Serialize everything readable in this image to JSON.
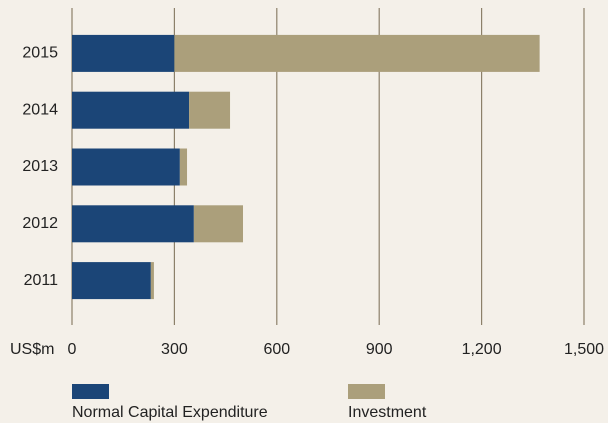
{
  "chart_data": {
    "type": "stacked_barh",
    "categories": [
      "2015",
      "2014",
      "2013",
      "2012",
      "2011"
    ],
    "series": [
      {
        "name": "Normal Capital Expenditure",
        "color": "#1b4577",
        "values": [
          300,
          343,
          316,
          357,
          231
        ]
      },
      {
        "name": "Investment",
        "color": "#ab9f7b",
        "values": [
          1070,
          120,
          21,
          144,
          9
        ]
      }
    ],
    "xlabel": "US$m",
    "xlim": [
      0,
      1500
    ],
    "xticks": [
      0,
      300,
      600,
      900,
      {
        "value": 1200,
        "label": "1,200"
      },
      {
        "value": 1500,
        "label": "1,500"
      }
    ],
    "grid": true
  }
}
